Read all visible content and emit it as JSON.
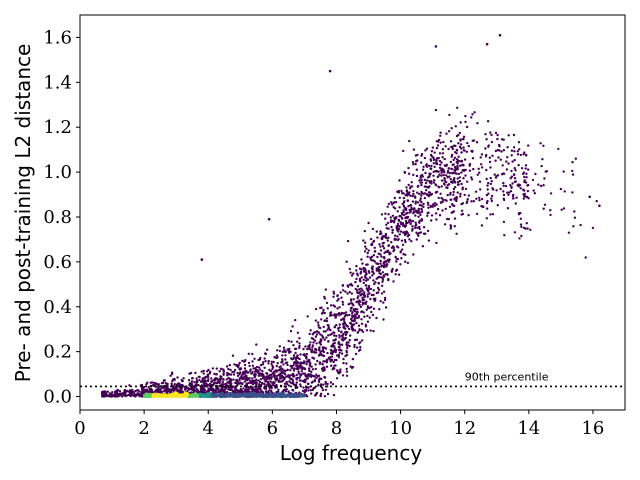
{
  "chart_data": {
    "type": "scatter",
    "title": "",
    "xlabel": "Log frequency",
    "ylabel": "Pre- and post-training L2 distance",
    "xlim": [
      0,
      17
    ],
    "ylim": [
      -0.06,
      1.7
    ],
    "xticks": [
      0,
      2,
      4,
      6,
      8,
      10,
      12,
      14,
      16
    ],
    "yticks": [
      0.0,
      0.2,
      0.4,
      0.6,
      0.8,
      1.0,
      1.2,
      1.4,
      1.6
    ],
    "ytick_labels": [
      "0.0",
      "0.2",
      "0.4",
      "0.6",
      "0.8",
      "1.0",
      "1.2",
      "1.4",
      "1.6"
    ],
    "grid": false,
    "colormap": "viridis (density)",
    "reference_line": {
      "y": 0.045,
      "style": "dotted",
      "label": "90th percentile",
      "label_x": 12.0
    },
    "trend": {
      "x": [
        0.7,
        2,
        3,
        4,
        5,
        6,
        7,
        8,
        9,
        10,
        11,
        12,
        13,
        14,
        15,
        16.2
      ],
      "median_y": [
        0.0,
        0.005,
        0.015,
        0.03,
        0.05,
        0.08,
        0.13,
        0.25,
        0.5,
        0.78,
        0.95,
        1.02,
        1.0,
        0.95,
        0.9,
        0.85
      ]
    },
    "notable_points": [
      {
        "x": 11.1,
        "y": 1.56
      },
      {
        "x": 12.7,
        "y": 1.57
      },
      {
        "x": 13.1,
        "y": 1.61
      },
      {
        "x": 7.8,
        "y": 1.45
      },
      {
        "x": 3.8,
        "y": 0.61
      },
      {
        "x": 5.9,
        "y": 0.79
      },
      {
        "x": 16.2,
        "y": 0.85
      },
      {
        "x": 15.9,
        "y": 0.89
      }
    ],
    "point_color": "#440154",
    "dense_colors": [
      "#3b528b",
      "#21918c",
      "#5ec962",
      "#fde725"
    ]
  }
}
